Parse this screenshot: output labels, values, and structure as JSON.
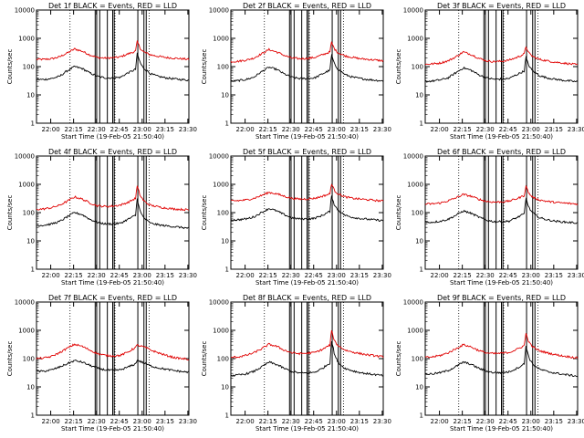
{
  "colors": {
    "events": "#000000",
    "lld": "#e00000",
    "background": "#ffffff"
  },
  "chart_data": [
    {
      "type": "line",
      "title": "Det 1f BLACK = Events, RED = LLD",
      "xlabel": "Start Time (19-Feb-05 21:50:40)",
      "ylabel": "Counts/sec",
      "x_ticks": [
        "22:00",
        "22:15",
        "22:30",
        "22:45",
        "23:00",
        "23:15",
        "23:30"
      ],
      "y_ticks": [
        "1",
        "10",
        "100",
        "1000",
        "10000"
      ],
      "xlim_minutes": [
        0,
        100
      ],
      "ylim": [
        1,
        10000
      ],
      "yscale": "log",
      "x_minutes": [
        0,
        5,
        10,
        15,
        20,
        25,
        30,
        35,
        40,
        45,
        50,
        55,
        60,
        65,
        66,
        67,
        68,
        70,
        72,
        75,
        80,
        85,
        90,
        95,
        100
      ],
      "series": [
        {
          "name": "LLD",
          "color": "#e00000",
          "values": [
            180,
            180,
            190,
            220,
            300,
            420,
            350,
            260,
            210,
            200,
            205,
            220,
            280,
            350,
            800,
            600,
            450,
            340,
            300,
            260,
            230,
            210,
            200,
            190,
            180
          ]
        },
        {
          "name": "Events",
          "color": "#000000",
          "values": [
            35,
            35,
            38,
            45,
            70,
            100,
            85,
            60,
            45,
            40,
            40,
            42,
            60,
            80,
            300,
            200,
            140,
            90,
            75,
            55,
            45,
            40,
            37,
            35,
            33
          ]
        }
      ],
      "vlines_dotted": [
        22.0,
        51.5,
        74.0
      ],
      "vlines_solid": [
        38.5,
        39.5,
        41.5,
        46.5,
        50.0,
        51.0,
        66.5,
        70.5,
        72.0
      ]
    },
    {
      "type": "line",
      "title": "Det 2f BLACK = Events, RED = LLD",
      "xlabel": "Start Time (19-Feb-05 21:50:40)",
      "ylabel": "Counts/sec",
      "x_ticks": [
        "22:00",
        "22:15",
        "22:30",
        "22:45",
        "23:00",
        "23:15",
        "23:30"
      ],
      "y_ticks": [
        "1",
        "10",
        "100",
        "1000",
        "10000"
      ],
      "xlim_minutes": [
        0,
        100
      ],
      "ylim": [
        1,
        10000
      ],
      "yscale": "log",
      "x_minutes": [
        0,
        5,
        10,
        15,
        20,
        25,
        30,
        35,
        40,
        45,
        50,
        55,
        60,
        65,
        66,
        67,
        68,
        70,
        72,
        75,
        80,
        85,
        90,
        95,
        100
      ],
      "series": [
        {
          "name": "LLD",
          "color": "#e00000",
          "values": [
            150,
            155,
            170,
            200,
            280,
            400,
            330,
            250,
            200,
            190,
            195,
            210,
            260,
            330,
            750,
            550,
            420,
            320,
            280,
            240,
            210,
            190,
            180,
            170,
            160
          ]
        },
        {
          "name": "Events",
          "color": "#000000",
          "values": [
            30,
            32,
            35,
            42,
            65,
            95,
            80,
            55,
            42,
            38,
            38,
            40,
            55,
            75,
            260,
            180,
            120,
            85,
            70,
            52,
            42,
            38,
            35,
            33,
            31
          ]
        }
      ],
      "vlines_dotted": [
        22.0,
        51.5,
        74.0
      ],
      "vlines_solid": [
        38.5,
        39.5,
        41.5,
        46.5,
        50.0,
        51.0,
        66.5,
        70.5,
        72.0
      ]
    },
    {
      "type": "line",
      "title": "Det 3f BLACK = Events, RED = LLD",
      "xlabel": "Start Time (19-Feb-05 21:50:40)",
      "ylabel": "Counts/sec",
      "x_ticks": [
        "22:00",
        "22:15",
        "22:30",
        "22:45",
        "23:00",
        "23:15",
        "23:30"
      ],
      "y_ticks": [
        "1",
        "10",
        "100",
        "1000",
        "10000"
      ],
      "xlim_minutes": [
        0,
        100
      ],
      "ylim": [
        1,
        10000
      ],
      "yscale": "log",
      "x_minutes": [
        0,
        5,
        10,
        15,
        20,
        25,
        30,
        35,
        40,
        45,
        50,
        55,
        60,
        65,
        66,
        67,
        68,
        70,
        72,
        75,
        80,
        85,
        90,
        95,
        100
      ],
      "series": [
        {
          "name": "LLD",
          "color": "#e00000",
          "values": [
            120,
            125,
            135,
            160,
            220,
            330,
            270,
            200,
            160,
            150,
            155,
            170,
            210,
            280,
            520,
            400,
            300,
            240,
            210,
            180,
            160,
            145,
            135,
            125,
            115
          ]
        },
        {
          "name": "Events",
          "color": "#000000",
          "values": [
            30,
            31,
            34,
            40,
            60,
            90,
            75,
            52,
            40,
            36,
            36,
            38,
            52,
            70,
            220,
            150,
            110,
            75,
            62,
            48,
            40,
            36,
            33,
            31,
            29
          ]
        }
      ],
      "vlines_dotted": [
        22.0,
        51.5,
        74.0
      ],
      "vlines_solid": [
        38.5,
        39.5,
        41.5,
        46.5,
        50.0,
        51.0,
        66.5,
        70.5,
        72.0
      ]
    },
    {
      "type": "line",
      "title": "Det 4f BLACK = Events, RED = LLD",
      "xlabel": "Start Time (19-Feb-05 21:50:40)",
      "ylabel": "Counts/sec",
      "x_ticks": [
        "22:00",
        "22:15",
        "22:30",
        "22:45",
        "23:00",
        "23:15",
        "23:30"
      ],
      "y_ticks": [
        "1",
        "10",
        "100",
        "1000",
        "10000"
      ],
      "xlim_minutes": [
        0,
        100
      ],
      "ylim": [
        1,
        10000
      ],
      "yscale": "log",
      "x_minutes": [
        0,
        5,
        10,
        15,
        20,
        25,
        30,
        35,
        40,
        45,
        50,
        55,
        60,
        65,
        66,
        67,
        68,
        70,
        72,
        75,
        80,
        85,
        90,
        95,
        100
      ],
      "series": [
        {
          "name": "LLD",
          "color": "#e00000",
          "values": [
            130,
            135,
            150,
            180,
            250,
            360,
            300,
            220,
            175,
            165,
            170,
            185,
            230,
            320,
            900,
            600,
            400,
            280,
            220,
            180,
            160,
            145,
            135,
            130,
            125
          ]
        },
        {
          "name": "Events",
          "color": "#000000",
          "values": [
            35,
            36,
            40,
            48,
            70,
            100,
            85,
            58,
            45,
            40,
            40,
            42,
            58,
            80,
            320,
            200,
            110,
            70,
            55,
            42,
            37,
            34,
            32,
            30,
            28
          ]
        }
      ],
      "vlines_dotted": [
        22.0,
        51.5,
        74.0
      ],
      "vlines_solid": [
        38.5,
        39.5,
        41.5,
        46.5,
        50.0,
        51.0,
        66.5,
        70.5,
        72.0
      ]
    },
    {
      "type": "line",
      "title": "Det 5f BLACK = Events, RED = LLD",
      "xlabel": "Start Time (19-Feb-05 21:50:40)",
      "ylabel": "Counts/sec",
      "x_ticks": [
        "22:00",
        "22:15",
        "22:30",
        "22:45",
        "23:00",
        "23:15",
        "23:30"
      ],
      "y_ticks": [
        "1",
        "10",
        "100",
        "1000",
        "10000"
      ],
      "xlim_minutes": [
        0,
        100
      ],
      "ylim": [
        1,
        10000
      ],
      "yscale": "log",
      "x_minutes": [
        0,
        5,
        10,
        15,
        20,
        25,
        30,
        35,
        40,
        45,
        50,
        55,
        60,
        65,
        66,
        67,
        68,
        70,
        72,
        75,
        80,
        85,
        90,
        95,
        100
      ],
      "series": [
        {
          "name": "LLD",
          "color": "#e00000",
          "values": [
            260,
            265,
            280,
            320,
            400,
            520,
            460,
            380,
            320,
            300,
            305,
            320,
            380,
            460,
            1100,
            800,
            600,
            480,
            420,
            360,
            320,
            300,
            285,
            270,
            255
          ]
        },
        {
          "name": "Events",
          "color": "#000000",
          "values": [
            55,
            56,
            60,
            70,
            100,
            140,
            115,
            85,
            65,
            60,
            60,
            63,
            80,
            110,
            400,
            280,
            180,
            130,
            105,
            80,
            68,
            62,
            58,
            55,
            52
          ]
        }
      ],
      "vlines_dotted": [
        22.0,
        51.5,
        74.0
      ],
      "vlines_solid": [
        38.5,
        39.5,
        41.5,
        46.5,
        50.0,
        51.0,
        66.5,
        70.5,
        72.0
      ]
    },
    {
      "type": "line",
      "title": "Det 6f BLACK = Events, RED = LLD",
      "xlabel": "Start Time (19-Feb-05 21:50:40)",
      "ylabel": "Counts/sec",
      "x_ticks": [
        "22:00",
        "22:15",
        "22:30",
        "22:45",
        "23:00",
        "23:15",
        "23:30"
      ],
      "y_ticks": [
        "1",
        "10",
        "100",
        "1000",
        "10000"
      ],
      "xlim_minutes": [
        0,
        100
      ],
      "ylim": [
        1,
        10000
      ],
      "yscale": "log",
      "x_minutes": [
        0,
        5,
        10,
        15,
        20,
        25,
        30,
        35,
        40,
        45,
        50,
        55,
        60,
        65,
        66,
        67,
        68,
        70,
        72,
        75,
        80,
        85,
        90,
        95,
        100
      ],
      "series": [
        {
          "name": "LLD",
          "color": "#e00000",
          "values": [
            200,
            205,
            220,
            260,
            330,
            440,
            380,
            300,
            250,
            235,
            240,
            255,
            310,
            400,
            900,
            650,
            480,
            370,
            320,
            280,
            250,
            230,
            220,
            210,
            200
          ]
        },
        {
          "name": "Events",
          "color": "#000000",
          "values": [
            45,
            46,
            50,
            58,
            80,
            115,
            95,
            70,
            54,
            48,
            48,
            50,
            66,
            90,
            330,
            230,
            150,
            105,
            85,
            66,
            56,
            50,
            47,
            45,
            43
          ]
        }
      ],
      "vlines_dotted": [
        22.0,
        51.5,
        74.0
      ],
      "vlines_solid": [
        38.5,
        39.5,
        41.5,
        46.5,
        50.0,
        51.0,
        66.5,
        70.5,
        72.0
      ]
    },
    {
      "type": "line",
      "title": "Det 7f BLACK = Events, RED = LLD",
      "xlabel": "Start Time (19-Feb-05 21:50:40)",
      "ylabel": "Counts/sec",
      "x_ticks": [
        "22:00",
        "22:15",
        "22:30",
        "22:45",
        "23:00",
        "23:15",
        "23:30"
      ],
      "y_ticks": [
        "1",
        "10",
        "100",
        "1000",
        "10000"
      ],
      "xlim_minutes": [
        0,
        100
      ],
      "ylim": [
        1,
        10000
      ],
      "yscale": "log",
      "x_minutes": [
        0,
        5,
        10,
        15,
        20,
        25,
        30,
        35,
        40,
        45,
        50,
        55,
        60,
        65,
        66,
        67,
        68,
        70,
        72,
        75,
        80,
        85,
        90,
        95,
        100
      ],
      "series": [
        {
          "name": "LLD",
          "color": "#e00000",
          "values": [
            100,
            105,
            120,
            160,
            230,
            320,
            270,
            200,
            150,
            130,
            125,
            130,
            170,
            250,
            300,
            290,
            280,
            260,
            240,
            200,
            160,
            130,
            110,
            100,
            95
          ]
        },
        {
          "name": "Events",
          "color": "#000000",
          "values": [
            35,
            36,
            40,
            50,
            65,
            85,
            75,
            58,
            46,
            40,
            38,
            40,
            50,
            65,
            90,
            85,
            80,
            72,
            65,
            55,
            47,
            42,
            38,
            35,
            33
          ]
        }
      ],
      "vlines_dotted": [
        22.0,
        51.5,
        74.0
      ],
      "vlines_solid": [
        38.5,
        39.5,
        41.5,
        46.5,
        50.0,
        51.0,
        66.5,
        70.5,
        72.0
      ]
    },
    {
      "type": "line",
      "title": "Det 8f BLACK = Events, RED = LLD",
      "xlabel": "Start Time (19-Feb-05 21:50:40)",
      "ylabel": "Counts/sec",
      "x_ticks": [
        "22:00",
        "22:15",
        "22:30",
        "22:45",
        "23:00",
        "23:15",
        "23:30"
      ],
      "y_ticks": [
        "1",
        "10",
        "100",
        "1000",
        "10000"
      ],
      "xlim_minutes": [
        0,
        100
      ],
      "ylim": [
        1,
        10000
      ],
      "yscale": "log",
      "x_minutes": [
        0,
        5,
        10,
        15,
        20,
        25,
        30,
        35,
        40,
        45,
        50,
        55,
        60,
        65,
        66,
        67,
        68,
        70,
        72,
        75,
        80,
        85,
        90,
        95,
        100
      ],
      "series": [
        {
          "name": "LLD",
          "color": "#e00000",
          "values": [
            110,
            115,
            130,
            160,
            220,
            320,
            270,
            200,
            160,
            150,
            155,
            165,
            210,
            300,
            1000,
            650,
            420,
            300,
            250,
            200,
            170,
            150,
            135,
            125,
            115
          ]
        },
        {
          "name": "Events",
          "color": "#000000",
          "values": [
            25,
            26,
            29,
            35,
            50,
            75,
            62,
            45,
            35,
            31,
            31,
            33,
            45,
            70,
            450,
            260,
            140,
            80,
            60,
            45,
            37,
            32,
            29,
            27,
            25
          ]
        }
      ],
      "vlines_dotted": [
        22.0,
        51.5,
        74.0
      ],
      "vlines_solid": [
        38.5,
        39.5,
        41.5,
        46.5,
        50.0,
        51.0,
        66.5,
        70.5,
        72.0
      ]
    },
    {
      "type": "line",
      "title": "Det 9f BLACK = Events, RED = LLD",
      "xlabel": "Start Time (19-Feb-05 21:50:40)",
      "ylabel": "Counts/sec",
      "x_ticks": [
        "22:00",
        "22:15",
        "22:30",
        "22:45",
        "23:00",
        "23:15",
        "23:30"
      ],
      "y_ticks": [
        "1",
        "10",
        "100",
        "1000",
        "10000"
      ],
      "xlim_minutes": [
        0,
        100
      ],
      "ylim": [
        1,
        10000
      ],
      "yscale": "log",
      "x_minutes": [
        0,
        5,
        10,
        15,
        20,
        25,
        30,
        35,
        40,
        45,
        50,
        55,
        60,
        65,
        66,
        67,
        68,
        70,
        72,
        75,
        80,
        85,
        90,
        95,
        100
      ],
      "series": [
        {
          "name": "LLD",
          "color": "#e00000",
          "values": [
            110,
            115,
            130,
            160,
            220,
            310,
            260,
            195,
            160,
            150,
            155,
            165,
            210,
            290,
            800,
            560,
            380,
            280,
            230,
            190,
            160,
            140,
            125,
            115,
            105
          ]
        },
        {
          "name": "Events",
          "color": "#000000",
          "values": [
            28,
            29,
            32,
            38,
            52,
            75,
            63,
            46,
            36,
            32,
            32,
            34,
            45,
            65,
            300,
            190,
            110,
            70,
            55,
            42,
            35,
            31,
            28,
            26,
            24
          ]
        }
      ],
      "vlines_dotted": [
        22.0,
        51.5,
        74.0
      ],
      "vlines_solid": [
        38.5,
        39.5,
        41.5,
        46.5,
        50.0,
        51.0,
        66.5,
        70.5,
        72.0
      ]
    }
  ]
}
